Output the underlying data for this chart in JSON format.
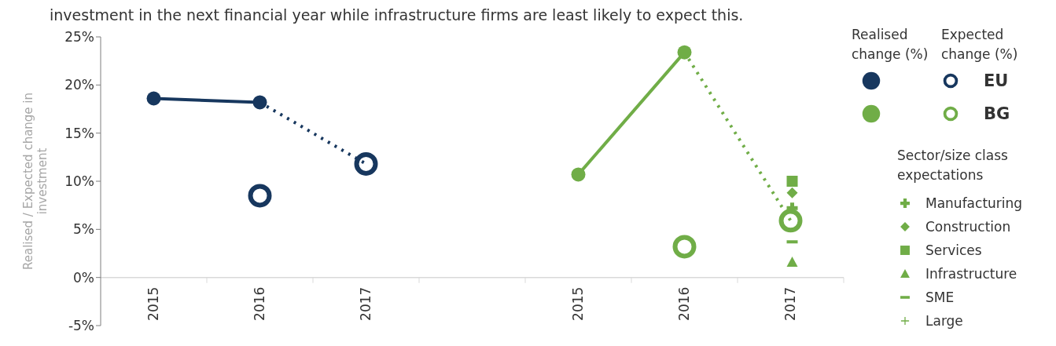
{
  "chart_data": {
    "type": "line",
    "title": "investment in the next financial year while infrastructure firms are least likely to expect this.",
    "ylabel": "Realised / Expected change in investment",
    "legend_title": "Sector/size class expectations",
    "annotations": [
      "Realised change (%)",
      "Expected change (%)"
    ],
    "categories": [
      "2015",
      "2016",
      "2017",
      null,
      "2015",
      "2016",
      "2017"
    ],
    "ylim": [
      -5,
      25
    ],
    "yticks": [
      {
        "value": -5,
        "label": "-5%"
      },
      {
        "value": 0,
        "label": "0%"
      },
      {
        "value": 5,
        "label": "5%"
      },
      {
        "value": 10,
        "label": "10%"
      },
      {
        "value": 15,
        "label": "15%"
      },
      {
        "value": 20,
        "label": "20%"
      },
      {
        "value": 25,
        "label": "25%"
      }
    ],
    "grid": false,
    "legend": "right",
    "series": [
      {
        "color": "#17375e",
        "marker": "circle",
        "line_style": "solid",
        "values": [
          18.6,
          18.2,
          null,
          null,
          null,
          null,
          null
        ]
      },
      {
        "type": "scatter",
        "name": "EU",
        "color": "#17375e",
        "marker": "circle",
        "values": [
          null,
          8.5,
          11.8,
          null,
          null,
          null,
          null
        ]
      },
      {
        "color": "#17375e",
        "marker": "none",
        "line_style": "dotted",
        "values": [
          null,
          18.2,
          11.8,
          null,
          null,
          null,
          null
        ]
      },
      {
        "color": "#70ad47",
        "marker": "circle",
        "line_style": "solid",
        "values": [
          null,
          null,
          null,
          null,
          10.7,
          23.4,
          null
        ]
      },
      {
        "type": "scatter",
        "name": "BG",
        "color": "#70ad47",
        "marker": "circle",
        "values": [
          null,
          null,
          null,
          null,
          null,
          3.2,
          5.9
        ]
      },
      {
        "color": "#70ad47",
        "marker": "none",
        "line_style": "dotted",
        "values": [
          null,
          null,
          null,
          null,
          null,
          23.4,
          5.9
        ]
      },
      {
        "type": "scatter",
        "name": "Manufacturing",
        "color": "#70ad47",
        "marker": "cross",
        "values": [
          null,
          null,
          null,
          null,
          null,
          null,
          7.2
        ]
      },
      {
        "type": "scatter",
        "name": "Construction",
        "color": "#70ad47",
        "marker": "diamond",
        "values": [
          null,
          null,
          null,
          null,
          null,
          null,
          8.8
        ]
      },
      {
        "type": "scatter",
        "name": "Services",
        "color": "#70ad47",
        "marker": "square",
        "values": [
          null,
          null,
          null,
          null,
          null,
          null,
          10.0
        ]
      },
      {
        "type": "scatter",
        "name": "Infrastructure",
        "color": "#70ad47",
        "marker": "triangle",
        "values": [
          null,
          null,
          null,
          null,
          null,
          null,
          1.6
        ]
      },
      {
        "type": "scatter",
        "name": "SME",
        "color": "#70ad47",
        "values": [
          null,
          null,
          null,
          null,
          null,
          null,
          3.7
        ]
      },
      {
        "type": "scatter",
        "name": "Large",
        "color": "#70ad47",
        "marker": "plus",
        "values": [
          null,
          null,
          null,
          null,
          null,
          null,
          null
        ]
      }
    ]
  }
}
